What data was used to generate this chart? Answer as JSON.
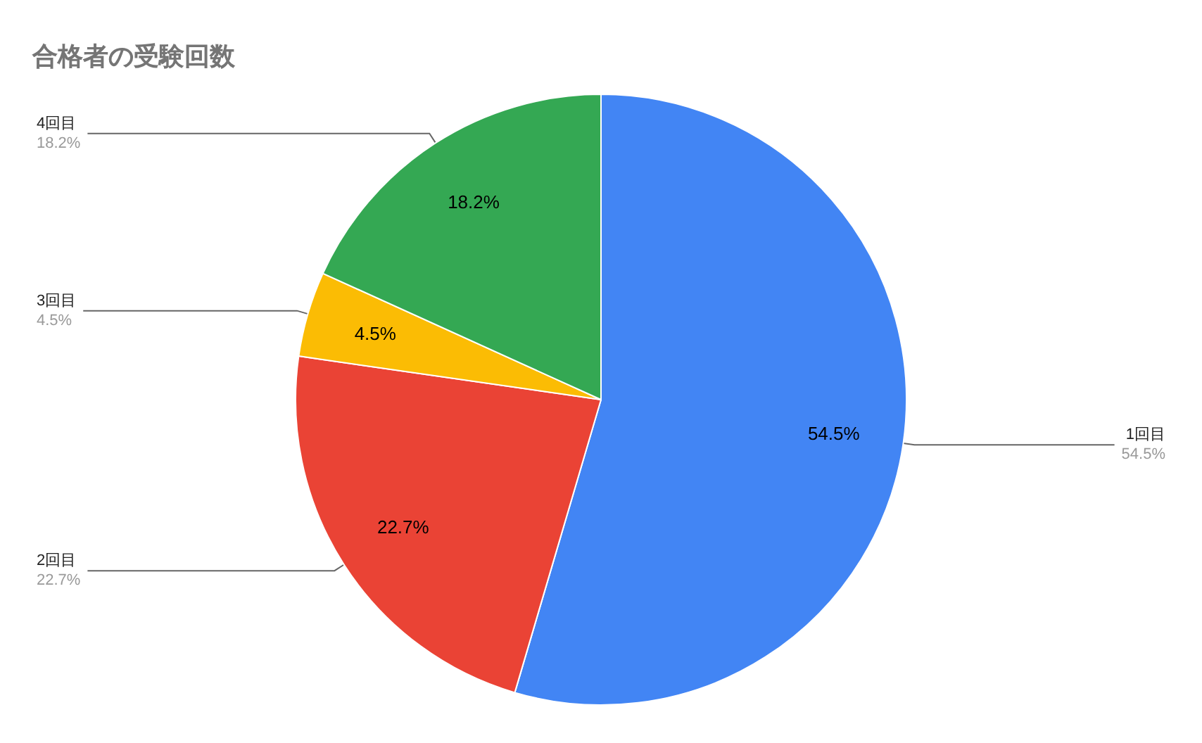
{
  "chart_data": {
    "type": "pie",
    "title": "合格者の受験回数",
    "categories": [
      "1回目",
      "2回目",
      "3回目",
      "4回目"
    ],
    "values": [
      54.5,
      22.7,
      4.5,
      18.2
    ],
    "colors": [
      "#4285f4",
      "#ea4335",
      "#fbbc04",
      "#34a853"
    ],
    "value_labels": [
      "54.5%",
      "22.7%",
      "4.5%",
      "18.2%"
    ]
  }
}
